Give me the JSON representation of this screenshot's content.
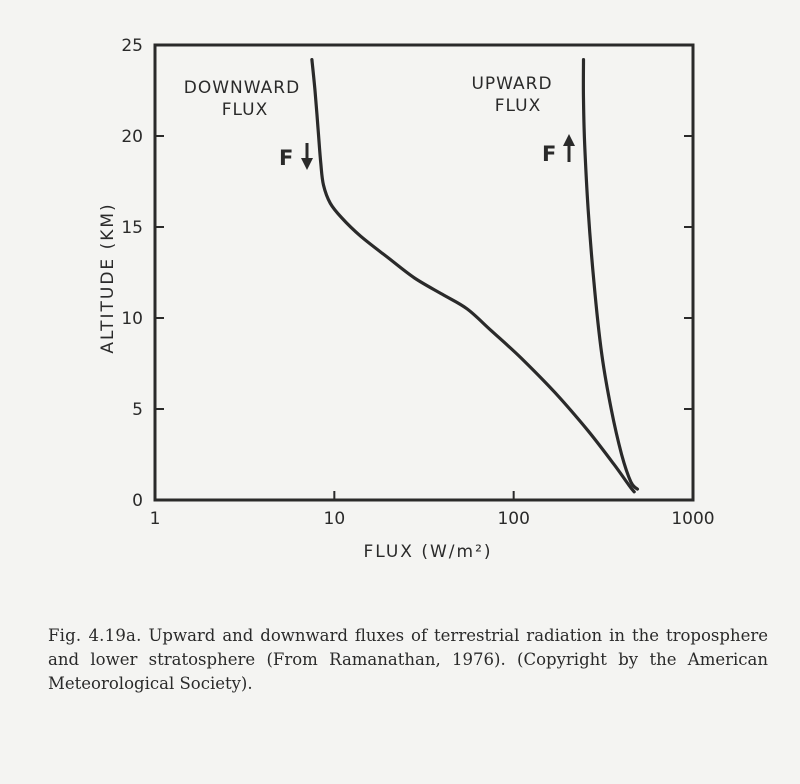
{
  "chart_data": {
    "type": "line",
    "x_scale": "log",
    "xlim": [
      1,
      1000
    ],
    "ylim": [
      0,
      25
    ],
    "x_ticks": [
      1,
      10,
      100,
      1000
    ],
    "x_tick_labels": [
      "1",
      "10",
      "100",
      "1000"
    ],
    "y_ticks": [
      0,
      5,
      10,
      15,
      20,
      25
    ],
    "y_tick_labels": [
      "0",
      "5",
      "10",
      "15",
      "20",
      "25"
    ],
    "xlabel": "FLUX (W/m²)",
    "ylabel": "ALTITUDE (KM)",
    "grid": false,
    "series": [
      {
        "name": "DOWNWARD FLUX",
        "points": [
          [
            7.5,
            24.2
          ],
          [
            7.8,
            22.5
          ],
          [
            8.1,
            20.5
          ],
          [
            8.4,
            18.5
          ],
          [
            8.7,
            17.3
          ],
          [
            9.5,
            16.3
          ],
          [
            11,
            15.5
          ],
          [
            14,
            14.5
          ],
          [
            20,
            13.3
          ],
          [
            28,
            12.2
          ],
          [
            40,
            11.3
          ],
          [
            55,
            10.5
          ],
          [
            75,
            9.3
          ],
          [
            110,
            7.8
          ],
          [
            170,
            5.9
          ],
          [
            260,
            3.8
          ],
          [
            360,
            2.0
          ],
          [
            440,
            0.8
          ],
          [
            470,
            0.45
          ]
        ]
      },
      {
        "name": "UPWARD FLUX",
        "points": [
          [
            245,
            24.2
          ],
          [
            245,
            22.0
          ],
          [
            249,
            19.5
          ],
          [
            260,
            16.0
          ],
          [
            280,
            12.0
          ],
          [
            310,
            8.0
          ],
          [
            350,
            5.0
          ],
          [
            400,
            2.5
          ],
          [
            450,
            1.0
          ],
          [
            490,
            0.6
          ]
        ]
      }
    ],
    "annotations": [
      {
        "lines": [
          "DOWNWARD",
          "FLUX"
        ],
        "symbol": "F",
        "arrow": "down"
      },
      {
        "lines": [
          "UPWARD",
          "FLUX"
        ],
        "symbol": "F",
        "arrow": "up"
      }
    ]
  },
  "caption": {
    "label": "Fig. 4.19a.",
    "text": "Upward and downward fluxes of terrestrial radiation in the troposphere and lower stratosphere (From Ramanathan, 1976). (Copyright by the American Meteorological Society)."
  }
}
